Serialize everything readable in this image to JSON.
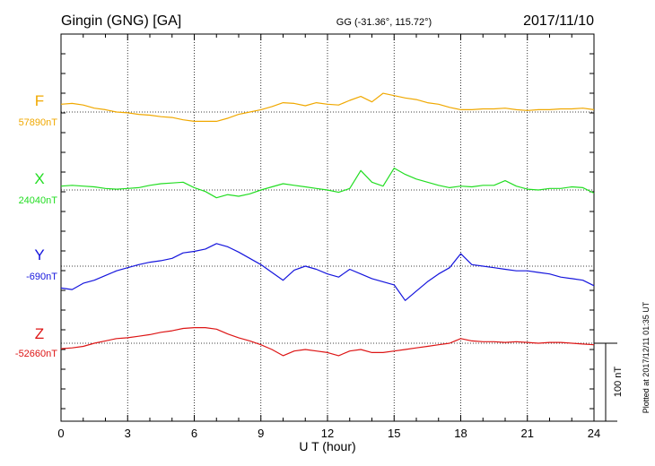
{
  "header": {
    "station": "Gingin (GNG)  [GA]",
    "coords": "GG (-31.36°, 115.72°)",
    "date": "2017/11/10"
  },
  "footer": {
    "plotted": "Plotted at 2017/12/11 01:35 UT"
  },
  "chart_data": {
    "type": "line",
    "title": "Gingin (GNG)  [GA]",
    "xlabel": "U T (hour)",
    "ylabel": "",
    "xlim": [
      0,
      24
    ],
    "x_ticks": [
      0,
      3,
      6,
      9,
      12,
      15,
      18,
      21,
      24
    ],
    "x_tick_labels": [
      "0",
      "3",
      "6",
      "9",
      "12",
      "15",
      "18",
      "21",
      "24"
    ],
    "grid": true,
    "scale_bar": {
      "value": 100,
      "label": "100 nT"
    },
    "series": [
      {
        "name": "F",
        "baseline_label": "57890nT",
        "color": "#f0a800",
        "x": [
          0,
          0.5,
          1,
          1.5,
          2,
          2.5,
          3,
          3.5,
          4,
          4.5,
          5,
          5.5,
          6,
          6.5,
          7,
          7.5,
          8,
          8.5,
          9,
          9.5,
          10,
          10.5,
          11,
          11.5,
          12,
          12.5,
          13,
          13.5,
          14,
          14.5,
          15,
          15.5,
          16,
          16.5,
          17,
          17.5,
          18,
          18.5,
          19,
          19.5,
          20,
          20.5,
          21,
          21.5,
          22,
          22.5,
          23,
          23.5,
          24
        ],
        "y": [
          10,
          11,
          9,
          5,
          3,
          0,
          -1,
          -3,
          -4,
          -6,
          -7,
          -10,
          -12,
          -12,
          -12,
          -8,
          -3,
          0,
          3,
          7,
          12,
          11,
          8,
          12,
          10,
          9,
          15,
          20,
          13,
          24,
          21,
          18,
          16,
          12,
          10,
          6,
          3,
          3,
          4,
          4,
          5,
          3,
          2,
          3,
          3,
          4,
          4,
          5,
          3
        ]
      },
      {
        "name": "X",
        "baseline_label": "24040nT",
        "color": "#22dd22",
        "x": [
          0,
          0.5,
          1,
          1.5,
          2,
          2.5,
          3,
          3.5,
          4,
          4.5,
          5,
          5.5,
          6,
          6.5,
          7,
          7.5,
          8,
          8.5,
          9,
          9.5,
          10,
          10.5,
          11,
          11.5,
          12,
          12.5,
          13,
          13.5,
          14,
          14.5,
          15,
          15.5,
          16,
          16.5,
          17,
          17.5,
          18,
          18.5,
          19,
          19.5,
          20,
          20.5,
          21,
          21.5,
          22,
          22.5,
          23,
          23.5,
          24
        ],
        "y": [
          5,
          6,
          5,
          4,
          2,
          1,
          2,
          3,
          6,
          8,
          9,
          10,
          3,
          -2,
          -10,
          -6,
          -8,
          -5,
          0,
          4,
          8,
          6,
          4,
          2,
          0,
          -3,
          2,
          25,
          10,
          5,
          28,
          20,
          14,
          10,
          6,
          3,
          5,
          4,
          6,
          6,
          12,
          5,
          1,
          0,
          2,
          2,
          4,
          3,
          -4
        ]
      },
      {
        "name": "Y",
        "baseline_label": "-690nT",
        "color": "#1515dd",
        "x": [
          0,
          0.5,
          1,
          1.5,
          2,
          2.5,
          3,
          3.5,
          4,
          4.5,
          5,
          5.5,
          6,
          6.5,
          7,
          7.5,
          8,
          8.5,
          9,
          9.5,
          10,
          10.5,
          11,
          11.5,
          12,
          12.5,
          13,
          13.5,
          14,
          14.5,
          15,
          15.5,
          16,
          16.5,
          17,
          17.5,
          18,
          18.5,
          19,
          19.5,
          20,
          20.5,
          21,
          21.5,
          22,
          22.5,
          23,
          23.5,
          24
        ],
        "y": [
          -28,
          -30,
          -22,
          -18,
          -12,
          -6,
          -2,
          2,
          5,
          7,
          10,
          17,
          19,
          22,
          29,
          25,
          18,
          10,
          2,
          -8,
          -18,
          -5,
          0,
          -4,
          -10,
          -14,
          -4,
          -10,
          -16,
          -20,
          -24,
          -44,
          -32,
          -20,
          -10,
          -2,
          16,
          2,
          0,
          -2,
          -4,
          -6,
          -6,
          -8,
          -10,
          -14,
          -16,
          -18,
          -25
        ]
      },
      {
        "name": "Z",
        "baseline_label": "-52660nT",
        "color": "#dd1515",
        "x": [
          0,
          0.5,
          1,
          1.5,
          2,
          2.5,
          3,
          3.5,
          4,
          4.5,
          5,
          5.5,
          6,
          6.5,
          7,
          7.5,
          8,
          8.5,
          9,
          9.5,
          10,
          10.5,
          11,
          11.5,
          12,
          12.5,
          13,
          13.5,
          14,
          14.5,
          15,
          15.5,
          16,
          16.5,
          17,
          17.5,
          18,
          18.5,
          19,
          19.5,
          20,
          20.5,
          21,
          21.5,
          22,
          22.5,
          23,
          23.5,
          24
        ],
        "y": [
          -7,
          -6,
          -4,
          0,
          3,
          6,
          7,
          9,
          11,
          14,
          16,
          19,
          20,
          20,
          18,
          12,
          7,
          3,
          -2,
          -8,
          -16,
          -10,
          -8,
          -10,
          -12,
          -16,
          -10,
          -8,
          -12,
          -12,
          -10,
          -8,
          -6,
          -4,
          -2,
          0,
          6,
          3,
          2,
          2,
          1,
          2,
          1,
          0,
          1,
          1,
          0,
          -1,
          -2
        ]
      }
    ]
  }
}
